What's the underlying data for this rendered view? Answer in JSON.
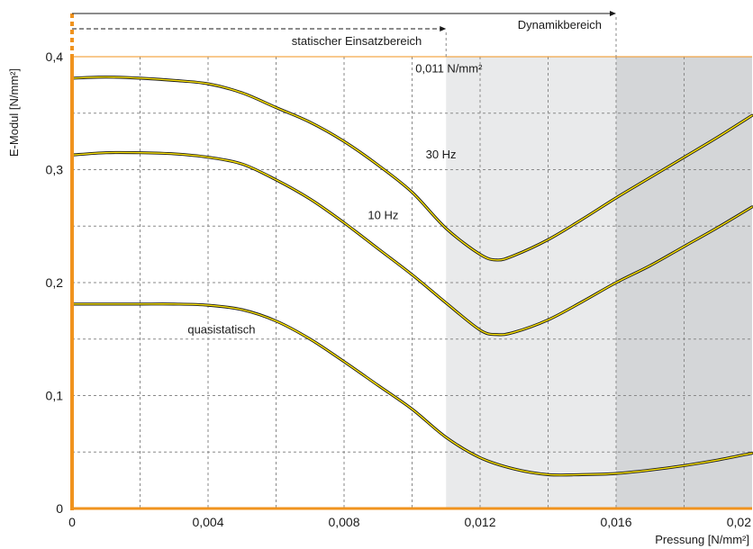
{
  "chart_data": {
    "type": "line",
    "xlabel": "Pressung [N/mm²]",
    "ylabel": "E-Modul [N/mm²]",
    "xlim": [
      0,
      0.02
    ],
    "ylim": [
      0,
      0.4
    ],
    "x_ticks": [
      {
        "value": 0,
        "label": "0"
      },
      {
        "value": 0.004,
        "label": "0,004"
      },
      {
        "value": 0.008,
        "label": "0,008"
      },
      {
        "value": 0.012,
        "label": "0,012"
      },
      {
        "value": 0.016,
        "label": "0,016"
      },
      {
        "value": 0.02,
        "label": "0,02"
      }
    ],
    "y_ticks": [
      {
        "value": 0,
        "label": "0"
      },
      {
        "value": 0.1,
        "label": "0,1"
      },
      {
        "value": 0.2,
        "label": "0,2"
      },
      {
        "value": 0.3,
        "label": "0,3"
      },
      {
        "value": 0.4,
        "label": "0,4"
      }
    ],
    "grid": true,
    "regions": [
      {
        "name": "statischer Einsatzbereich",
        "x_range": [
          0,
          0.011
        ],
        "shade": "#ffffff"
      },
      {
        "name": "Dynamikbereich",
        "x_range": [
          0.011,
          0.016
        ],
        "shade": "#e9eaeb"
      },
      {
        "name": "",
        "x_range": [
          0.016,
          0.02
        ],
        "shade": "#d4d6d8"
      }
    ],
    "annotation": {
      "text": "0,011 N/mm²",
      "x": 0.011,
      "y": 0.39
    },
    "series": [
      {
        "name": "30 Hz",
        "x": [
          0,
          0.001,
          0.002,
          0.003,
          0.004,
          0.005,
          0.006,
          0.007,
          0.008,
          0.009,
          0.01,
          0.011,
          0.012,
          0.0125,
          0.013,
          0.014,
          0.015,
          0.016,
          0.017,
          0.018,
          0.019,
          0.02
        ],
        "y": [
          0.381,
          0.382,
          0.381,
          0.379,
          0.376,
          0.368,
          0.355,
          0.342,
          0.325,
          0.304,
          0.28,
          0.248,
          0.225,
          0.22,
          0.224,
          0.238,
          0.256,
          0.275,
          0.293,
          0.311,
          0.329,
          0.348
        ]
      },
      {
        "name": "10 Hz",
        "x": [
          0,
          0.001,
          0.002,
          0.003,
          0.004,
          0.005,
          0.006,
          0.007,
          0.008,
          0.009,
          0.01,
          0.011,
          0.012,
          0.0125,
          0.013,
          0.014,
          0.015,
          0.016,
          0.017,
          0.018,
          0.019,
          0.02
        ],
        "y": [
          0.313,
          0.315,
          0.315,
          0.314,
          0.311,
          0.305,
          0.291,
          0.274,
          0.253,
          0.23,
          0.207,
          0.182,
          0.158,
          0.154,
          0.156,
          0.167,
          0.183,
          0.2,
          0.215,
          0.232,
          0.249,
          0.267
        ]
      },
      {
        "name": "quasistatisch",
        "x": [
          0,
          0.001,
          0.002,
          0.003,
          0.004,
          0.005,
          0.006,
          0.007,
          0.008,
          0.009,
          0.01,
          0.011,
          0.012,
          0.013,
          0.014,
          0.015,
          0.016,
          0.017,
          0.018,
          0.019,
          0.02
        ],
        "y": [
          0.181,
          0.181,
          0.181,
          0.181,
          0.18,
          0.176,
          0.166,
          0.15,
          0.13,
          0.109,
          0.088,
          0.063,
          0.045,
          0.035,
          0.03,
          0.03,
          0.031,
          0.034,
          0.038,
          0.043,
          0.049
        ]
      }
    ],
    "curve_labels": [
      {
        "text": "30 Hz",
        "x": 0.0104,
        "y": 0.31
      },
      {
        "text": "10 Hz",
        "x": 0.0087,
        "y": 0.256
      },
      {
        "text": "quasistatisch",
        "x": 0.0034,
        "y": 0.155
      }
    ],
    "ranges": [
      {
        "label": "statischer Einsatzbereich",
        "x_end": 0.011,
        "style": "dashed"
      },
      {
        "label": "Dynamikbereich",
        "x_end": 0.016,
        "style": "solid"
      }
    ],
    "colors": {
      "axis": "#f0931e",
      "curve_fill": "#ffe600",
      "curve_outline": "#1a1a1a",
      "grid": "#8a8a8a",
      "text": "#1a1a1a"
    }
  }
}
